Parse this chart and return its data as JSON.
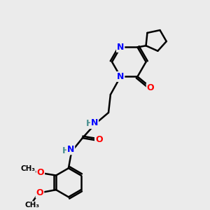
{
  "background_color": "#ebebeb",
  "atom_colors": {
    "N": "#0000ff",
    "O": "#ff0000",
    "C": "#000000",
    "H": "#4a9090"
  },
  "bond_color": "#000000",
  "bond_width": 1.8,
  "figsize": [
    3.0,
    3.0
  ],
  "dpi": 100
}
